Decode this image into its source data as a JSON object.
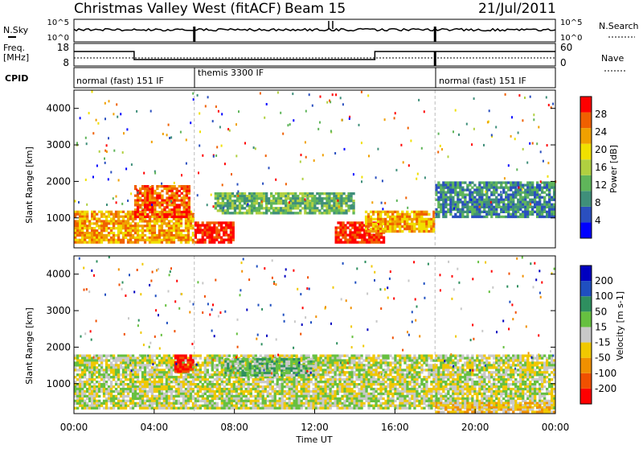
{
  "header": {
    "title": "Christmas Valley West (fitACF)",
    "beam": "Beam 15",
    "date": "21/Jul/2011"
  },
  "nsky_panel": {
    "left_label": "N.Sky",
    "left_ticks": [
      "10^5",
      "10^0"
    ],
    "right_label": "N.Search",
    "right_ticks": [
      "10^5",
      "10^0"
    ]
  },
  "freq_panel": {
    "left_label_1": "Freq.",
    "left_label_2": "[MHz]",
    "left_ticks": [
      "18",
      "8"
    ],
    "right_label": "Nave",
    "right_ticks": [
      "60",
      "0"
    ]
  },
  "cpid": {
    "label": "CPID",
    "modes": [
      {
        "name": "normal (fast) 151 IF",
        "start": 0,
        "end": 6
      },
      {
        "name": "themis 3300 IF",
        "start": 6,
        "end": 18
      },
      {
        "name": "normal (fast) 151 IF",
        "start": 18,
        "end": 24
      }
    ]
  },
  "power_panel": {
    "ylabel": "Slant Range [km]",
    "yticks": [
      "4000",
      "3000",
      "2000",
      "1000"
    ],
    "colorbar_label": "Power [dB]",
    "colorbar_ticks": [
      "28",
      "24",
      "20",
      "16",
      "12",
      "8",
      "4"
    ],
    "colors": [
      "#0000ff",
      "#2a4fbf",
      "#3f8f7a",
      "#5fb55a",
      "#b0d040",
      "#f0e000",
      "#f0a000",
      "#f06000",
      "#ff0000"
    ]
  },
  "velocity_panel": {
    "ylabel": "Slant Range [km]",
    "yticks": [
      "4000",
      "3000",
      "2000",
      "1000"
    ],
    "colorbar_label": "Velocity [m s-1]",
    "colorbar_ticks": [
      "200",
      "100",
      "50",
      "15",
      "-15",
      "-50",
      "-100",
      "-200"
    ],
    "colors": [
      "#0000c0",
      "#1f4fc0",
      "#2e8f5f",
      "#66c040",
      "#c8c8c8",
      "#f0c800",
      "#f09000",
      "#f05000",
      "#ff0000"
    ]
  },
  "xaxis": {
    "label": "Time UT",
    "ticks": [
      "00:00",
      "04:00",
      "08:00",
      "12:00",
      "16:00",
      "20:00",
      "00:00"
    ]
  },
  "chart_data": {
    "type": "heatmap",
    "x_range_hours": [
      0,
      24
    ],
    "y_range_km": [
      180,
      4500
    ],
    "regions": [
      {
        "panel": "power",
        "t0": 0.0,
        "t1": 6.0,
        "r0": 300,
        "r1": 1200,
        "value": 22
      },
      {
        "panel": "power",
        "t0": 3.0,
        "t1": 5.8,
        "r0": 1000,
        "r1": 1900,
        "value": 26
      },
      {
        "panel": "power",
        "t0": 6.0,
        "t1": 8.0,
        "r0": 300,
        "r1": 900,
        "value": 28
      },
      {
        "panel": "power",
        "t0": 7.0,
        "t1": 14.0,
        "r0": 1100,
        "r1": 1700,
        "value": 12
      },
      {
        "panel": "power",
        "t0": 13.0,
        "t1": 15.5,
        "r0": 300,
        "r1": 900,
        "value": 27
      },
      {
        "panel": "power",
        "t0": 14.5,
        "t1": 18.0,
        "r0": 600,
        "r1": 1200,
        "value": 20
      },
      {
        "panel": "power",
        "t0": 18.0,
        "t1": 24.0,
        "r0": 1000,
        "r1": 2000,
        "value": 8
      },
      {
        "panel": "velocity",
        "t0": 0.0,
        "t1": 24.0,
        "r0": 300,
        "r1": 1800,
        "value": 0
      },
      {
        "panel": "velocity",
        "t0": 5.0,
        "t1": 6.0,
        "r0": 1300,
        "r1": 1800,
        "value": -220
      },
      {
        "panel": "velocity",
        "t0": 7.5,
        "t1": 12.0,
        "r0": 1200,
        "r1": 1700,
        "value": 40
      },
      {
        "panel": "velocity",
        "t0": 18.0,
        "t1": 24.0,
        "r0": 200,
        "r1": 500,
        "value": -60
      }
    ]
  }
}
